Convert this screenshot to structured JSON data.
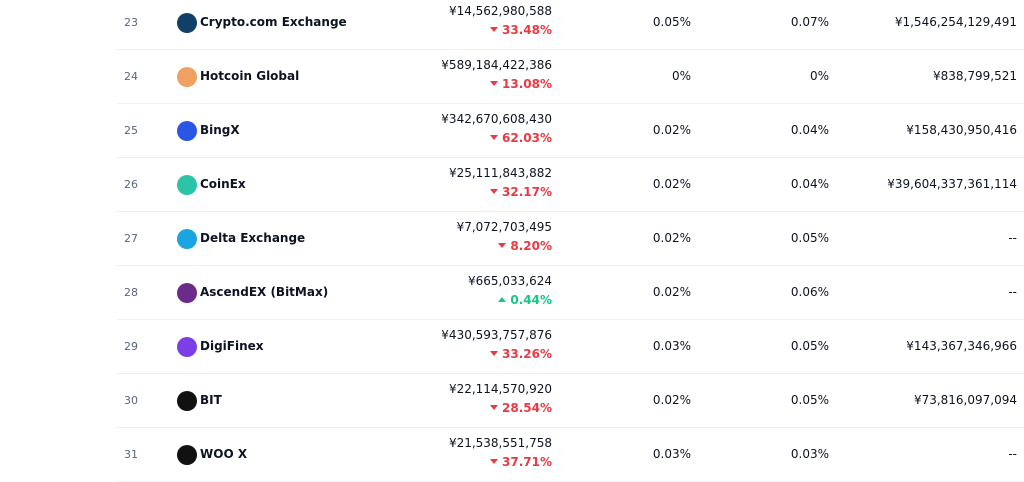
{
  "table": {
    "rows": [
      {
        "rank": "23",
        "name": "Crypto.com Exchange",
        "volume": "¥14,562,980,588",
        "change": "33.48%",
        "direction": "down",
        "col3": "0.05%",
        "col4": "0.07%",
        "col5": "¥1,546,254,129,491"
      },
      {
        "rank": "24",
        "name": "Hotcoin Global",
        "volume": "¥589,184,422,386",
        "change": "13.08%",
        "direction": "down",
        "col3": "0%",
        "col4": "0%",
        "col5": "¥838,799,521"
      },
      {
        "rank": "25",
        "name": "BingX",
        "volume": "¥342,670,608,430",
        "change": "62.03%",
        "direction": "down",
        "col3": "0.02%",
        "col4": "0.04%",
        "col5": "¥158,430,950,416"
      },
      {
        "rank": "26",
        "name": "CoinEx",
        "volume": "¥25,111,843,882",
        "change": "32.17%",
        "direction": "down",
        "col3": "0.02%",
        "col4": "0.04%",
        "col5": "¥39,604,337,361,114"
      },
      {
        "rank": "27",
        "name": "Delta Exchange",
        "volume": "¥7,072,703,495",
        "change": "8.20%",
        "direction": "down",
        "col3": "0.02%",
        "col4": "0.05%",
        "col5": "--"
      },
      {
        "rank": "28",
        "name": "AscendEX (BitMax)",
        "volume": "¥665,033,624",
        "change": "0.44%",
        "direction": "up",
        "col3": "0.02%",
        "col4": "0.06%",
        "col5": "--"
      },
      {
        "rank": "29",
        "name": "DigiFinex",
        "volume": "¥430,593,757,876",
        "change": "33.26%",
        "direction": "down",
        "col3": "0.03%",
        "col4": "0.05%",
        "col5": "¥143,367,346,966"
      },
      {
        "rank": "30",
        "name": "BIT",
        "volume": "¥22,114,570,920",
        "change": "28.54%",
        "direction": "down",
        "col3": "0.02%",
        "col4": "0.05%",
        "col5": "¥73,816,097,094"
      },
      {
        "rank": "31",
        "name": "WOO X",
        "volume": "¥21,538,551,758",
        "change": "37.71%",
        "direction": "down",
        "col3": "0.03%",
        "col4": "0.03%",
        "col5": "--"
      }
    ]
  }
}
